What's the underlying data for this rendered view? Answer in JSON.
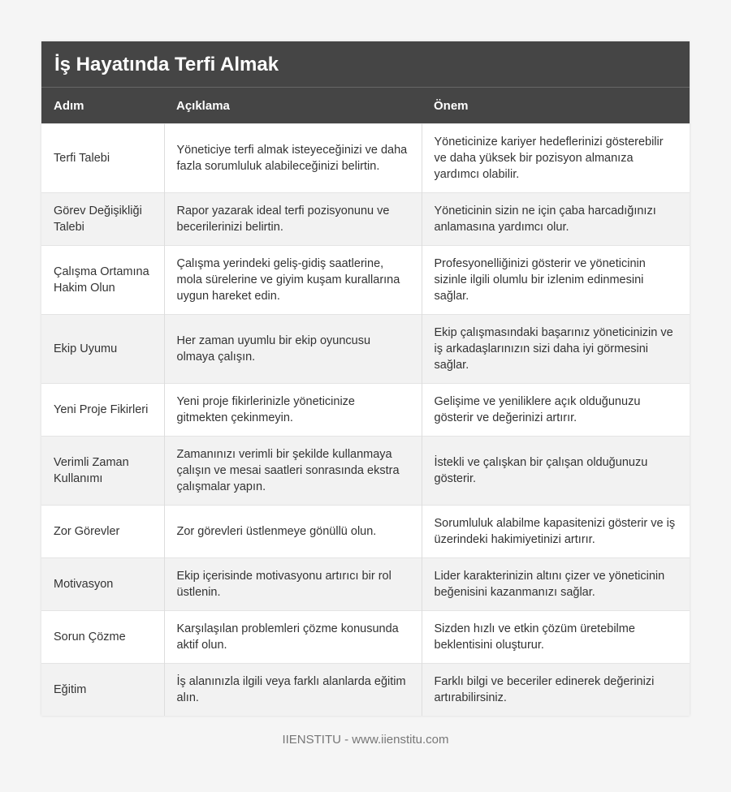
{
  "header": {
    "title": "İş Hayatında Terfi Almak"
  },
  "table": {
    "columns": [
      "Adım",
      "Açıklama",
      "Önem"
    ],
    "rows": [
      [
        "Terfi Talebi",
        "Yöneticiye terfi almak isteyeceğinizi ve daha fazla sorumluluk alabileceğinizi belirtin.",
        "Yöneticinize kariyer hedeflerinizi gösterebilir ve daha yüksek bir pozisyon almanıza yardımcı olabilir."
      ],
      [
        "Görev Değişikliği Talebi",
        "Rapor yazarak ideal terfi pozisyonunu ve becerilerinizi belirtin.",
        "Yöneticinin sizin ne için çaba harcadığınızı anlamasına yardımcı olur."
      ],
      [
        "Çalışma Ortamına Hakim Olun",
        "Çalışma yerindeki geliş-gidiş saatlerine, mola sürelerine ve giyim kuşam kurallarına uygun hareket edin.",
        "Profesyonelliğinizi gösterir ve yöneticinin sizinle ilgili olumlu bir izlenim edinmesini sağlar."
      ],
      [
        "Ekip Uyumu",
        "Her zaman uyumlu bir ekip oyuncusu olmaya çalışın.",
        "Ekip çalışmasındaki başarınız yöneticinizin ve iş arkadaşlarınızın sizi daha iyi görmesini sağlar."
      ],
      [
        "Yeni Proje Fikirleri",
        "Yeni proje fikirlerinizle yöneticinize gitmekten çekinmeyin.",
        "Gelişime ve yeniliklere açık olduğunuzu gösterir ve değerinizi artırır."
      ],
      [
        "Verimli Zaman Kullanımı",
        "Zamanınızı verimli bir şekilde kullanmaya çalışın ve mesai saatleri sonrasında ekstra çalışmalar yapın.",
        "İstekli ve çalışkan bir çalışan olduğunuzu gösterir."
      ],
      [
        "Zor Görevler",
        "Zor görevleri üstlenmeye gönüllü olun.",
        "Sorumluluk alabilme kapasitenizi gösterir ve iş üzerindeki hakimiyetinizi artırır."
      ],
      [
        "Motivasyon",
        "Ekip içerisinde motivasyonu artırıcı bir rol üstlenin.",
        "Lider karakterinizin altını çizer ve yöneticinin beğenisini kazanmanızı sağlar."
      ],
      [
        "Sorun Çözme",
        "Karşılaşılan problemleri çözme konusunda aktif olun.",
        "Sizden hızlı ve etkin çözüm üretebilme beklentisini oluşturur."
      ],
      [
        "Eğitim",
        "İş alanınızla ilgili veya farklı alanlarda eğitim alın.",
        "Farklı bilgi ve beceriler edinerek değerinizi artırabilirsiniz."
      ]
    ]
  },
  "footer": {
    "text": "IIENSTITU - www.iienstitu.com"
  }
}
